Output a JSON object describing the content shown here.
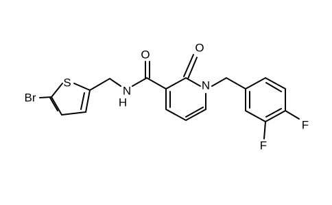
{
  "atoms": [
    {
      "label": "Br"
    },
    {
      "label": "S"
    },
    {
      "label": "N"
    },
    {
      "label": "H"
    },
    {
      "label": "O"
    },
    {
      "label": "O"
    },
    {
      "label": "N"
    },
    {
      "label": "F"
    },
    {
      "label": "F"
    }
  ]
}
